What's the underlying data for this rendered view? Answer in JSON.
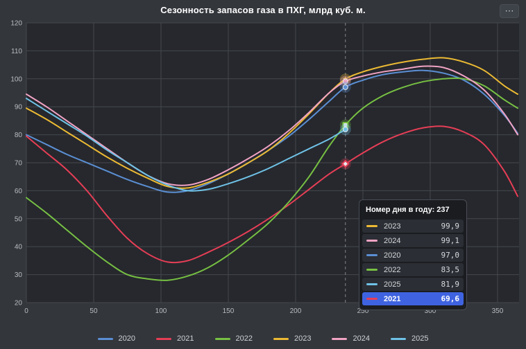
{
  "title": "Сезонность запасов газа в ПХГ, млрд куб. м.",
  "menu_button_label": "⋯",
  "colors": {
    "background": "#33363b",
    "plot_bg": "#26282d",
    "grid": "#45484e",
    "axis_text": "#b9bcc1",
    "dashed_line": "#9a9da3",
    "tooltip_highlight": "#3f63e0"
  },
  "chart_data": {
    "type": "line",
    "title": "Сезонность запасов газа в ПХГ, млрд куб. м.",
    "xlabel": "",
    "ylabel": "",
    "xlim": [
      0,
      366
    ],
    "ylim": [
      20,
      120
    ],
    "x_ticks": [
      0,
      50,
      100,
      150,
      200,
      250,
      300,
      350
    ],
    "y_ticks": [
      20,
      30,
      40,
      50,
      60,
      70,
      80,
      90,
      100,
      110,
      120
    ],
    "grid": true,
    "legend_position": "bottom",
    "series": [
      {
        "name": "2020",
        "color": "#5b8fd4",
        "marker": "circle",
        "points": [
          [
            0,
            80
          ],
          [
            15,
            76.5
          ],
          [
            30,
            73
          ],
          [
            45,
            70
          ],
          [
            60,
            67
          ],
          [
            75,
            64
          ],
          [
            90,
            61.5
          ],
          [
            105,
            59.5
          ],
          [
            120,
            60
          ],
          [
            135,
            62.5
          ],
          [
            150,
            66
          ],
          [
            165,
            70
          ],
          [
            180,
            74.5
          ],
          [
            195,
            79.5
          ],
          [
            210,
            85.5
          ],
          [
            225,
            92
          ],
          [
            237,
            97
          ],
          [
            250,
            99.5
          ],
          [
            265,
            101.5
          ],
          [
            280,
            102.5
          ],
          [
            295,
            103
          ],
          [
            310,
            102
          ],
          [
            325,
            99.5
          ],
          [
            340,
            94.5
          ],
          [
            355,
            87
          ],
          [
            365,
            80.5
          ]
        ]
      },
      {
        "name": "2021",
        "color": "#e63e56",
        "marker": "diamond",
        "points": [
          [
            0,
            79.5
          ],
          [
            15,
            73.5
          ],
          [
            30,
            67.5
          ],
          [
            45,
            60
          ],
          [
            60,
            51
          ],
          [
            75,
            43
          ],
          [
            90,
            37.5
          ],
          [
            105,
            34.5
          ],
          [
            120,
            35
          ],
          [
            135,
            38
          ],
          [
            150,
            41.5
          ],
          [
            165,
            45.5
          ],
          [
            180,
            50
          ],
          [
            195,
            55
          ],
          [
            210,
            60.5
          ],
          [
            225,
            66
          ],
          [
            237,
            69.6
          ],
          [
            250,
            73.5
          ],
          [
            265,
            77.5
          ],
          [
            280,
            80.5
          ],
          [
            295,
            82.5
          ],
          [
            310,
            83
          ],
          [
            325,
            81
          ],
          [
            340,
            76.5
          ],
          [
            355,
            67
          ],
          [
            365,
            58
          ]
        ]
      },
      {
        "name": "2022",
        "color": "#77c043",
        "marker": "square",
        "points": [
          [
            0,
            57.5
          ],
          [
            15,
            52
          ],
          [
            30,
            46
          ],
          [
            45,
            40
          ],
          [
            60,
            34.5
          ],
          [
            75,
            30
          ],
          [
            90,
            28.5
          ],
          [
            105,
            28
          ],
          [
            120,
            29.5
          ],
          [
            135,
            32.5
          ],
          [
            150,
            37
          ],
          [
            165,
            42.5
          ],
          [
            180,
            48.5
          ],
          [
            195,
            56
          ],
          [
            210,
            65
          ],
          [
            225,
            76
          ],
          [
            237,
            83.5
          ],
          [
            250,
            89.5
          ],
          [
            265,
            94
          ],
          [
            280,
            97
          ],
          [
            295,
            99
          ],
          [
            310,
            100
          ],
          [
            325,
            100
          ],
          [
            340,
            97.5
          ],
          [
            355,
            92.5
          ],
          [
            365,
            89.5
          ]
        ]
      },
      {
        "name": "2023",
        "color": "#ecba33",
        "marker": "star",
        "points": [
          [
            0,
            89.5
          ],
          [
            15,
            85.5
          ],
          [
            30,
            81
          ],
          [
            45,
            76.5
          ],
          [
            60,
            72
          ],
          [
            75,
            68
          ],
          [
            90,
            64.5
          ],
          [
            105,
            61.5
          ],
          [
            120,
            61
          ],
          [
            135,
            63
          ],
          [
            150,
            66
          ],
          [
            165,
            70
          ],
          [
            180,
            74.5
          ],
          [
            195,
            80.5
          ],
          [
            210,
            87.5
          ],
          [
            225,
            95
          ],
          [
            237,
            99.9
          ],
          [
            250,
            102.5
          ],
          [
            265,
            104.5
          ],
          [
            280,
            106
          ],
          [
            295,
            107
          ],
          [
            310,
            107.5
          ],
          [
            325,
            106
          ],
          [
            340,
            103
          ],
          [
            355,
            97.5
          ],
          [
            365,
            94.5
          ]
        ]
      },
      {
        "name": "2024",
        "color": "#f1a3c4",
        "marker": "circle",
        "points": [
          [
            0,
            94.5
          ],
          [
            15,
            90
          ],
          [
            30,
            85
          ],
          [
            45,
            80
          ],
          [
            60,
            75
          ],
          [
            75,
            70
          ],
          [
            90,
            65.5
          ],
          [
            105,
            62.5
          ],
          [
            120,
            62
          ],
          [
            135,
            64
          ],
          [
            150,
            67.5
          ],
          [
            165,
            71.5
          ],
          [
            180,
            76
          ],
          [
            195,
            81.5
          ],
          [
            210,
            88
          ],
          [
            225,
            95
          ],
          [
            237,
            99.1
          ],
          [
            250,
            101
          ],
          [
            265,
            102.5
          ],
          [
            280,
            103.5
          ],
          [
            295,
            104.5
          ],
          [
            310,
            104
          ],
          [
            325,
            101
          ],
          [
            340,
            96
          ],
          [
            355,
            87.5
          ],
          [
            365,
            80
          ]
        ]
      },
      {
        "name": "2025",
        "color": "#6fc2e7",
        "marker": "circle",
        "points": [
          [
            0,
            93
          ],
          [
            15,
            88.5
          ],
          [
            30,
            84
          ],
          [
            45,
            79.5
          ],
          [
            60,
            74.5
          ],
          [
            75,
            70
          ],
          [
            90,
            65.5
          ],
          [
            105,
            62
          ],
          [
            120,
            60
          ],
          [
            135,
            60.5
          ],
          [
            150,
            62.5
          ],
          [
            165,
            65
          ],
          [
            180,
            68
          ],
          [
            195,
            71.5
          ],
          [
            210,
            75
          ],
          [
            225,
            78.5
          ],
          [
            237,
            81.9
          ]
        ]
      }
    ]
  },
  "tooltip": {
    "day": 237,
    "header": "Номер дня в году: 237",
    "rows": [
      {
        "year": "2023",
        "value": 99.9,
        "value_label": "99,9",
        "highlighted": false
      },
      {
        "year": "2024",
        "value": 99.1,
        "value_label": "99,1",
        "highlighted": false
      },
      {
        "year": "2020",
        "value": 97.0,
        "value_label": "97,0",
        "highlighted": false
      },
      {
        "year": "2022",
        "value": 83.5,
        "value_label": "83,5",
        "highlighted": false
      },
      {
        "year": "2025",
        "value": 81.9,
        "value_label": "81,9",
        "highlighted": false
      },
      {
        "year": "2021",
        "value": 69.6,
        "value_label": "69,6",
        "highlighted": true
      }
    ]
  },
  "legend": {
    "items": [
      "2020",
      "2021",
      "2022",
      "2023",
      "2024",
      "2025"
    ]
  }
}
